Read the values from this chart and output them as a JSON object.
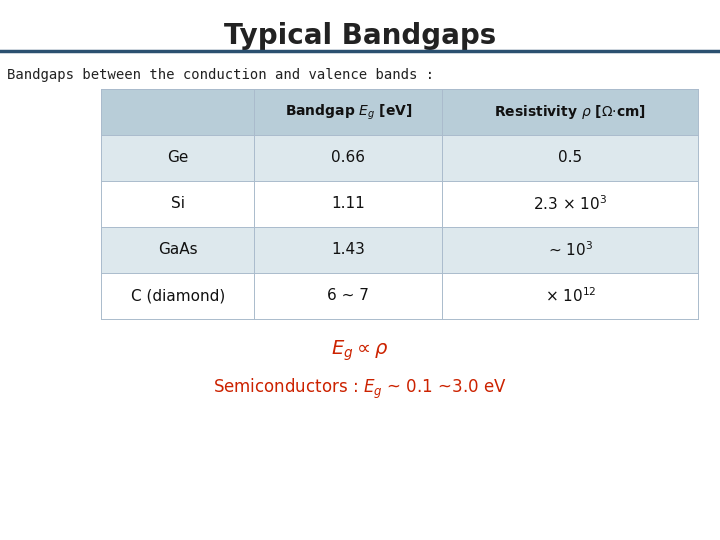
{
  "title": "Typical Bandgaps",
  "subtitle": "Bandgaps between the conduction and valence bands :",
  "col_headers": [
    "",
    "Bandgap $E_g$ [eV]",
    "Resistivity $\\rho$ [$\\Omega$$\\cdot$cm]"
  ],
  "rows": [
    [
      "Ge",
      "0.66",
      "0.5"
    ],
    [
      "Si",
      "1.11",
      "2.3 × 10$^3$"
    ],
    [
      "GaAs",
      "1.43",
      "~ 10$^3$"
    ],
    [
      "C (diamond)",
      "6 ~ 7",
      "× 10$^{12}$"
    ]
  ],
  "formula_line1": "$E_g \\propto \\rho$",
  "formula_line2": "Semiconductors : $E_g$ ~ 0.1 ~3.0 eV",
  "header_bg": "#b8cdd8",
  "row_bg_even": "#dde8ed",
  "row_bg_odd": "#ffffff",
  "title_color": "#222222",
  "subtitle_color": "#222222",
  "formula_color": "#cc2200",
  "line_color": "#2b5070",
  "bg_color": "#ffffff"
}
